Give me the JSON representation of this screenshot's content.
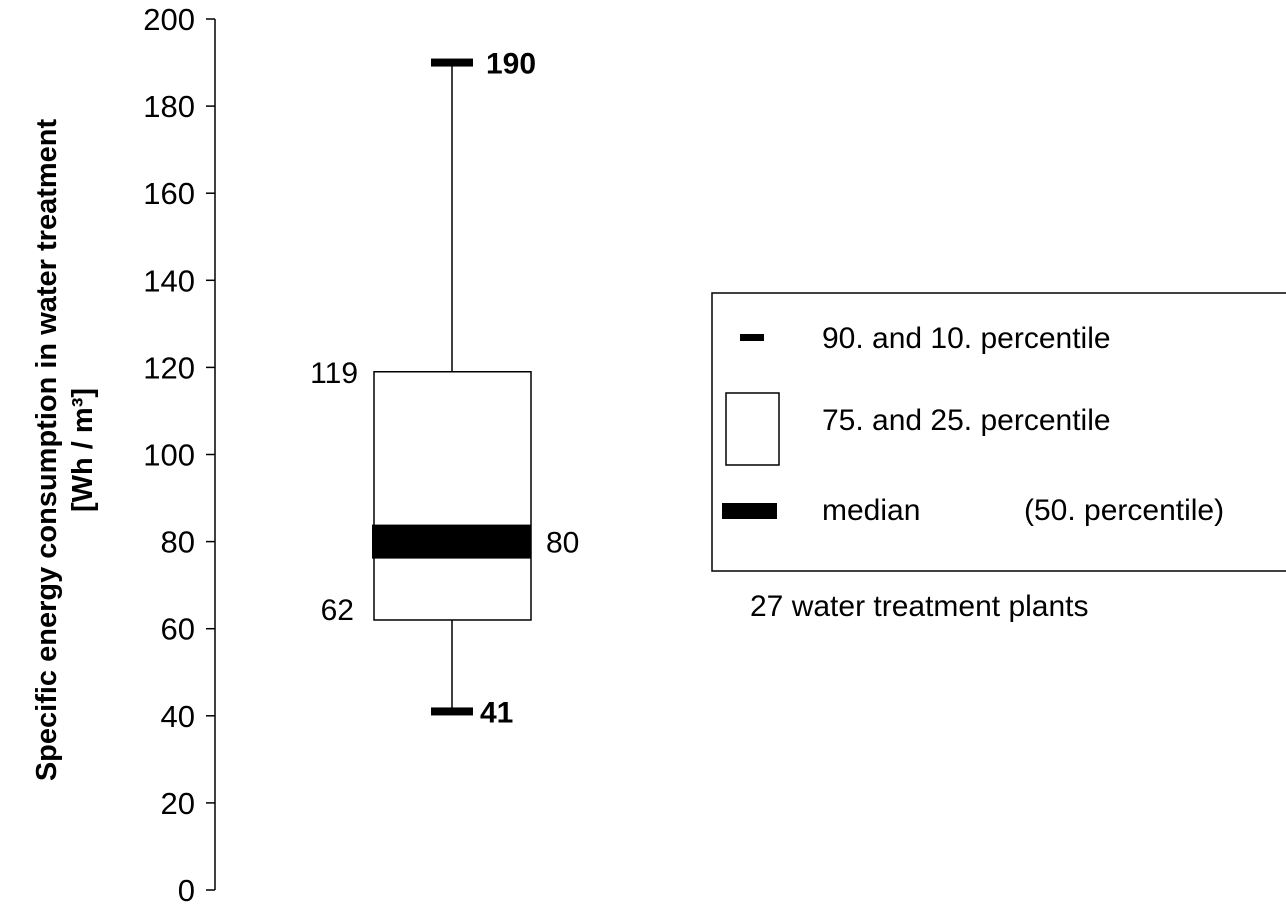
{
  "chart_data": {
    "type": "box",
    "ylabel_line1": "Specific energy consumption in water treatment",
    "ylabel_line2": "[Wh / m³]",
    "ylim": [
      0,
      200
    ],
    "yticks": [
      0,
      20,
      40,
      60,
      80,
      100,
      120,
      140,
      160,
      180,
      200
    ],
    "stats": {
      "p10": 41,
      "p25": 62,
      "median": 80,
      "p75": 119,
      "p90": 190
    },
    "value_labels": {
      "p10": "41",
      "p25": "62",
      "median": "80",
      "p75": "119",
      "p90": "190"
    }
  },
  "legend": {
    "items": [
      {
        "label": "90. and 10. percentile"
      },
      {
        "label": "75. and 25. percentile"
      },
      {
        "label": "median",
        "extra": "(50. percentile)"
      }
    ],
    "note": "27 water treatment plants"
  },
  "colors": {
    "ink": "#000000",
    "background": "#ffffff"
  }
}
